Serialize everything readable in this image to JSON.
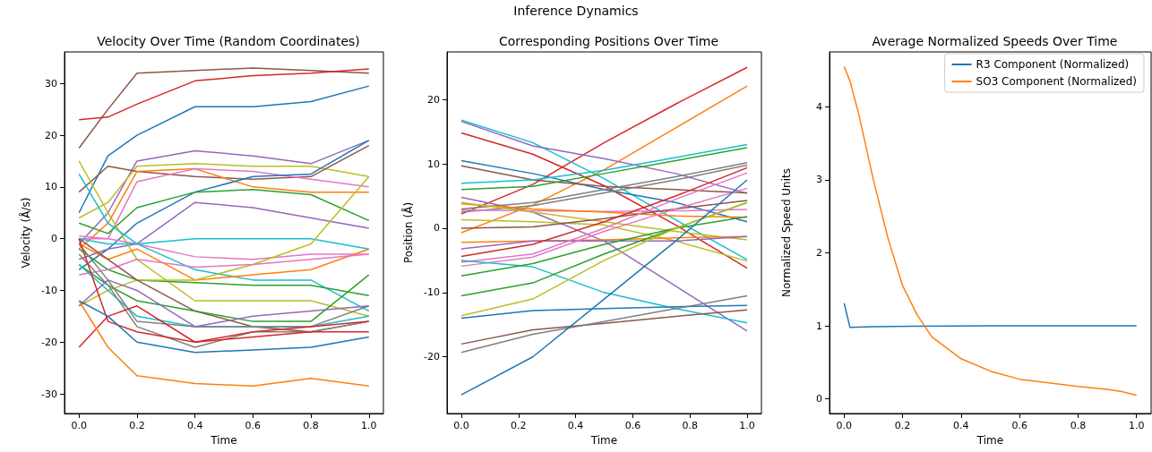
{
  "chart_data": [
    {
      "type": "line",
      "title": "Velocity Over Time (Random Coordinates)",
      "xlabel": "Time",
      "ylabel": "Velocity (Å/s)",
      "annotations": [
        "Inference Dynamics"
      ],
      "x": [
        0,
        0.1,
        0.2,
        0.4,
        0.6,
        0.8,
        1.0
      ],
      "xlim": [
        -0.05,
        1.05
      ],
      "ylim": [
        -33.8,
        36.1
      ],
      "xticks": [
        {
          "value": 0,
          "label": "0.0"
        },
        {
          "value": 0.2,
          "label": "0.2"
        },
        {
          "value": 0.4,
          "label": "0.4"
        },
        {
          "value": 0.6,
          "label": "0.6"
        },
        {
          "value": 0.8,
          "label": "0.8"
        },
        {
          "value": 1,
          "label": "1.0"
        }
      ],
      "yticks": [
        -30,
        -20,
        -10,
        0,
        10,
        20,
        30
      ],
      "series": [
        {
          "color": "#8c564b",
          "values": [
            17.5,
            25,
            32,
            32.5,
            33,
            32.5,
            32
          ]
        },
        {
          "color": "#d62728",
          "values": [
            23,
            23.5,
            26,
            30.5,
            31.5,
            32,
            32.8
          ]
        },
        {
          "color": "#1f77b4",
          "values": [
            5,
            16,
            20,
            25.5,
            25.5,
            26.5,
            29.5
          ]
        },
        {
          "color": "#9467bd",
          "values": [
            -1,
            5,
            15,
            17,
            16,
            14.5,
            19
          ]
        },
        {
          "color": "#bcbd22",
          "values": [
            4,
            7,
            14,
            14.5,
            14,
            14,
            12
          ]
        },
        {
          "color": "#8c564b",
          "values": [
            9,
            14,
            13,
            12,
            11.5,
            12,
            18
          ]
        },
        {
          "color": "#ff7f0e",
          "values": [
            -2,
            3,
            13,
            13.5,
            10,
            9,
            9
          ]
        },
        {
          "color": "#e377c2",
          "values": [
            0,
            0,
            11,
            13.5,
            13,
            11.5,
            10
          ]
        },
        {
          "color": "#1f77b4",
          "values": [
            -6,
            -2,
            3,
            9,
            12,
            12.5,
            19
          ]
        },
        {
          "color": "#2ca02c",
          "values": [
            3,
            1,
            6,
            9,
            9.5,
            8.5,
            3.5
          ]
        },
        {
          "color": "#9467bd",
          "values": [
            -4,
            -2,
            -1,
            7,
            6,
            4,
            2
          ]
        },
        {
          "color": "#bcbd22",
          "values": [
            15,
            5,
            -4,
            -12,
            -12,
            -12,
            -15
          ]
        },
        {
          "color": "#17becf",
          "values": [
            12.5,
            3,
            -1,
            0,
            0,
            0,
            -2
          ]
        },
        {
          "color": "#e377c2",
          "values": [
            0.5,
            0,
            -1,
            -3.5,
            -4,
            -3,
            -3
          ]
        },
        {
          "color": "#17becf",
          "values": [
            0,
            -1,
            -1,
            -6,
            -8,
            -8,
            -14
          ]
        },
        {
          "color": "#ff7f0e",
          "values": [
            -1,
            -4,
            -2,
            -8,
            -7,
            -6,
            -2
          ]
        },
        {
          "color": "#2ca02c",
          "values": [
            -2,
            -6,
            -8,
            -8.5,
            -9,
            -9,
            -11
          ]
        },
        {
          "color": "#bcbd22",
          "values": [
            -13,
            -10,
            -8,
            -8,
            -5,
            -1,
            12
          ]
        },
        {
          "color": "#e377c2",
          "values": [
            -7,
            -6,
            -4,
            -5.5,
            -5,
            -4,
            -3
          ]
        },
        {
          "color": "#8c564b",
          "values": [
            0,
            -4,
            -8,
            -14,
            -17,
            -18,
            -16
          ]
        },
        {
          "color": "#2ca02c",
          "values": [
            -5,
            -9,
            -12,
            -14,
            -16,
            -16,
            -7
          ]
        },
        {
          "color": "#17becf",
          "values": [
            -5,
            -10,
            -15,
            -17,
            -17,
            -17,
            -15
          ]
        },
        {
          "color": "#9467bd",
          "values": [
            -13,
            -8,
            -10,
            -17,
            -15,
            -14,
            -13
          ]
        },
        {
          "color": "#7f7f7f",
          "values": [
            -3,
            -9,
            -17,
            -21,
            -18,
            -18,
            -16
          ]
        },
        {
          "color": "#7f7f7f",
          "values": [
            -1,
            -8,
            -16,
            -17,
            -17,
            -17,
            -13
          ]
        },
        {
          "color": "#d62728",
          "values": [
            -21,
            -15,
            -13,
            -20,
            -19,
            -18,
            -18
          ]
        },
        {
          "color": "#d62728",
          "values": [
            0,
            -16,
            -18,
            -20,
            -18,
            -17,
            -16
          ]
        },
        {
          "color": "#1f77b4",
          "values": [
            -12,
            -15,
            -20,
            -22,
            -21.5,
            -21,
            -19
          ]
        },
        {
          "color": "#ff7f0e",
          "values": [
            -12,
            -21,
            -26.5,
            -28,
            -28.5,
            -27,
            -28.5
          ]
        }
      ]
    },
    {
      "type": "line",
      "title": "Corresponding Positions Over Time",
      "xlabel": "Time",
      "ylabel": "Position (Å)",
      "x": [
        0,
        0.25,
        0.5,
        0.75,
        1.0
      ],
      "xlim": [
        -0.05,
        1.05
      ],
      "ylim": [
        -28.8,
        27.4
      ],
      "xticks": [
        {
          "value": 0,
          "label": "0.0"
        },
        {
          "value": 0.2,
          "label": "0.2"
        },
        {
          "value": 0.4,
          "label": "0.4"
        },
        {
          "value": 0.6,
          "label": "0.6"
        },
        {
          "value": 0.8,
          "label": "0.8"
        },
        {
          "value": 1,
          "label": "1.0"
        }
      ],
      "yticks": [
        -20,
        -10,
        0,
        10,
        20
      ],
      "series": [
        {
          "color": "#d62728",
          "values": [
            2.2,
            6.8,
            13.3,
            19.3,
            25
          ]
        },
        {
          "color": "#ff7f0e",
          "values": [
            -0.7,
            3.6,
            9.1,
            15.6,
            22.1
          ]
        },
        {
          "color": "#17becf",
          "values": [
            16.8,
            13.3,
            7.7,
            1.3,
            -4.9
          ]
        },
        {
          "color": "#9467bd",
          "values": [
            16.6,
            12.8,
            10.8,
            8.5,
            5.4
          ]
        },
        {
          "color": "#9467bd",
          "values": [
            4.8,
            2.5,
            -2,
            -9,
            -16
          ]
        },
        {
          "color": "#d62728",
          "values": [
            14.8,
            11.5,
            6.6,
            0.5,
            -6.2
          ]
        },
        {
          "color": "#1f77b4",
          "values": [
            10.5,
            8.5,
            6,
            4,
            1
          ]
        },
        {
          "color": "#8c564b",
          "values": [
            9.7,
            7.5,
            6.5,
            6,
            5.5
          ]
        },
        {
          "color": "#17becf",
          "values": [
            7,
            7.5,
            9,
            11,
            13
          ]
        },
        {
          "color": "#2ca02c",
          "values": [
            6,
            6.5,
            8.5,
            10.5,
            12.5
          ]
        },
        {
          "color": "#7f7f7f",
          "values": [
            3,
            4,
            6,
            8,
            10.2
          ]
        },
        {
          "color": "#7f7f7f",
          "values": [
            2.5,
            3.5,
            5.5,
            7.5,
            9.8
          ]
        },
        {
          "color": "#e377c2",
          "values": [
            2.8,
            2.7,
            2.6,
            2.7,
            2.9
          ]
        },
        {
          "color": "#ff7f0e",
          "values": [
            3.8,
            3,
            2.5,
            1.9,
            1.7
          ]
        },
        {
          "color": "#bcbd22",
          "values": [
            4,
            2.5,
            1,
            -0.5,
            -1.8
          ]
        },
        {
          "color": "#bcbd22",
          "values": [
            1.3,
            1,
            0.5,
            -2,
            -5.1
          ]
        },
        {
          "color": "#8c564b",
          "values": [
            0,
            0.2,
            1.5,
            3,
            4.3
          ]
        },
        {
          "color": "#ff7f0e",
          "values": [
            -2.2,
            -2,
            -1.8,
            -1.5,
            -1.3
          ]
        },
        {
          "color": "#9467bd",
          "values": [
            -3.2,
            -2,
            -2,
            -2,
            -1.3
          ]
        },
        {
          "color": "#d62728",
          "values": [
            -4.4,
            -2.5,
            1,
            5,
            9.4
          ]
        },
        {
          "color": "#e377c2",
          "values": [
            -5.3,
            -4,
            0,
            4.5,
            8.6
          ]
        },
        {
          "color": "#e377c2",
          "values": [
            -5.9,
            -4.5,
            -0.5,
            3,
            6.2
          ]
        },
        {
          "color": "#17becf",
          "values": [
            -5,
            -6,
            -10,
            -12.5,
            -14.7
          ]
        },
        {
          "color": "#2ca02c",
          "values": [
            -7.4,
            -5.5,
            -2.5,
            0,
            1.8
          ]
        },
        {
          "color": "#2ca02c",
          "values": [
            -10.5,
            -8.5,
            -4,
            0,
            4
          ]
        },
        {
          "color": "#bcbd22",
          "values": [
            -13.6,
            -11,
            -5,
            0,
            4
          ]
        },
        {
          "color": "#1f77b4",
          "values": [
            -14,
            -12.8,
            -12.5,
            -12.2,
            -12
          ]
        },
        {
          "color": "#8c564b",
          "values": [
            -18,
            -15.8,
            -14.8,
            -13.7,
            -12.7
          ]
        },
        {
          "color": "#7f7f7f",
          "values": [
            -19.3,
            -16.5,
            -14.5,
            -12.5,
            -10.5
          ]
        },
        {
          "color": "#1f77b4",
          "values": [
            -25.9,
            -20,
            -11,
            -2,
            7.5
          ]
        }
      ]
    },
    {
      "type": "line",
      "title": "Average Normalized Speeds Over Time",
      "xlabel": "Time",
      "ylabel": "Normalized Speed Units",
      "legend": "top right",
      "xlim": [
        -0.05,
        1.05
      ],
      "ylim": [
        -0.2,
        4.75
      ],
      "xticks": [
        {
          "value": 0,
          "label": "0.0"
        },
        {
          "value": 0.2,
          "label": "0.2"
        },
        {
          "value": 0.4,
          "label": "0.4"
        },
        {
          "value": 0.6,
          "label": "0.6"
        },
        {
          "value": 0.8,
          "label": "0.8"
        },
        {
          "value": 1,
          "label": "1.0"
        }
      ],
      "yticks": [
        0,
        1,
        2,
        3,
        4
      ],
      "series": [
        {
          "name": "R3 Component (Normalized)",
          "color": "#1f77b4",
          "x": [
            0,
            0.02,
            0.1,
            0.5,
            1.0
          ],
          "values": [
            1.31,
            0.98,
            0.99,
            1.0,
            1.0
          ]
        },
        {
          "name": "SO3 Component (Normalized)",
          "color": "#ff7f0e",
          "x": [
            0,
            0.02,
            0.05,
            0.1,
            0.15,
            0.2,
            0.25,
            0.3,
            0.4,
            0.5,
            0.6,
            0.7,
            0.8,
            0.9,
            0.95,
            1.0
          ],
          "values": [
            4.55,
            4.35,
            3.9,
            3.0,
            2.2,
            1.55,
            1.15,
            0.85,
            0.55,
            0.38,
            0.27,
            0.22,
            0.17,
            0.13,
            0.1,
            0.05
          ]
        }
      ]
    }
  ]
}
